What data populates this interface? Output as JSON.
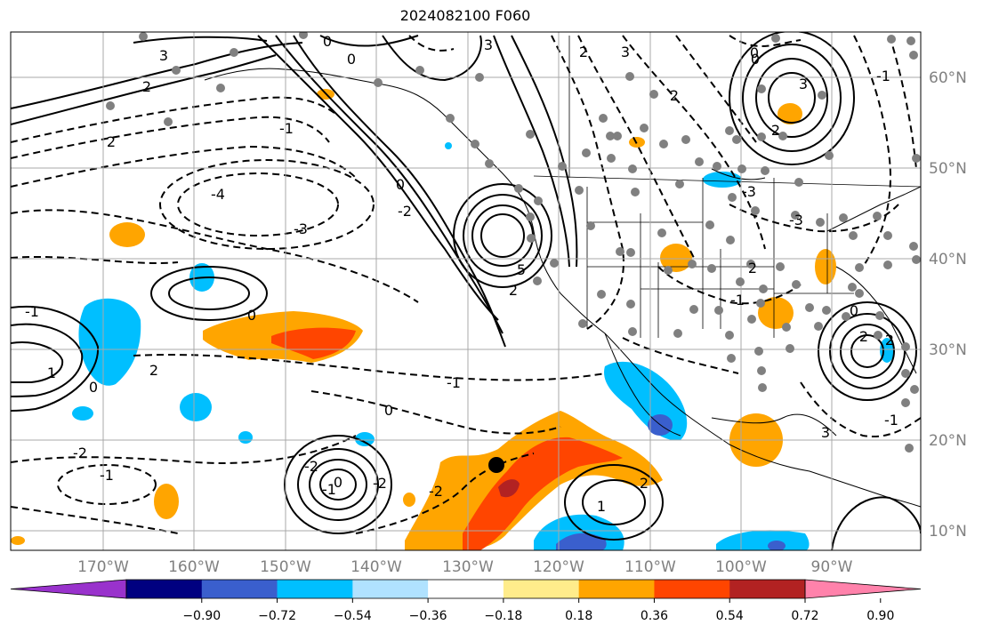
{
  "title": "2024082100 F060",
  "lon_labels": [
    "170°W",
    "160°W",
    "150°W",
    "140°W",
    "130°W",
    "120°W",
    "110°W",
    "100°W",
    "90°W"
  ],
  "lat_labels": [
    "60°N",
    "50°N",
    "40°N",
    "30°N",
    "20°N",
    "10°N"
  ],
  "colorbar": {
    "colors": [
      "#9932cc",
      "#000080",
      "#3a5fcd",
      "#00bfff",
      "#b0e2ff",
      "#ffffff",
      "#ffec8b",
      "#ffa500",
      "#ff4500",
      "#b22222",
      "#ff82ab"
    ],
    "tick_labels": [
      "−0.90",
      "−0.72",
      "−0.54",
      "−0.36",
      "−0.18",
      "0.18",
      "0.36",
      "0.54",
      "0.72",
      "0.90"
    ]
  },
  "contour_labels": [
    "0",
    "3",
    "0",
    "3",
    "2",
    "3",
    "0",
    "2",
    "2",
    "3",
    "2",
    "-1",
    "0",
    "-2",
    "-4",
    "-3",
    "2",
    "0",
    "5",
    "2",
    "-1",
    "0",
    "1",
    "2",
    "-1",
    "0",
    "-2",
    "-2",
    "-1",
    "-2",
    "0",
    "-1",
    "-2",
    "2",
    "1",
    "2",
    "-1",
    "0",
    "0",
    "2",
    "3",
    "2",
    "-1",
    "-3",
    "-3",
    "-1"
  ],
  "marker": {
    "label": "storm center marker",
    "lon": -126.5,
    "lat": 17.3
  }
}
